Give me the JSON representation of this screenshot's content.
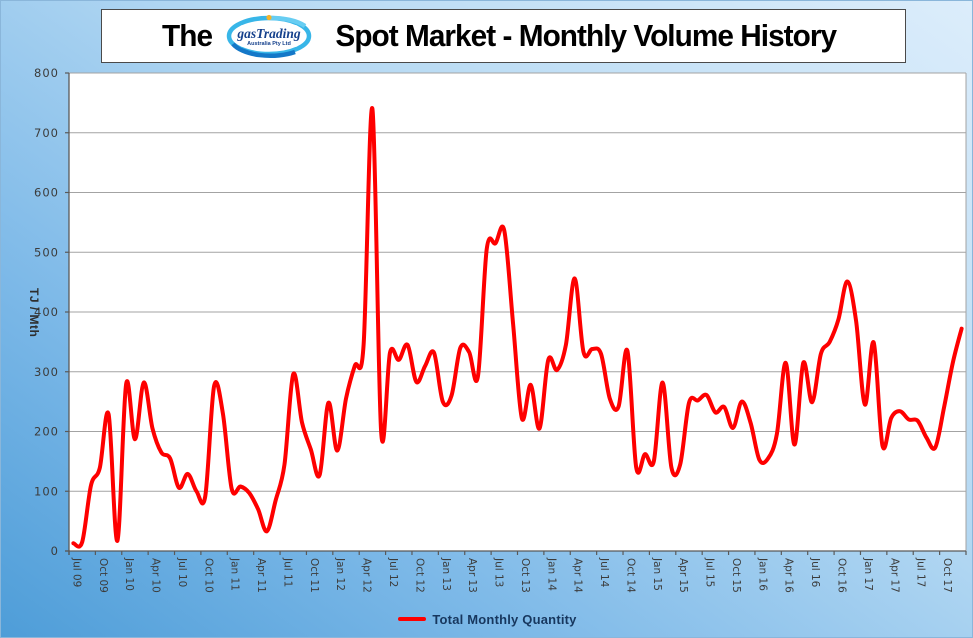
{
  "title": {
    "prefix": "The",
    "suffix": "Spot Market - Monthly Volume History",
    "logo_name": "gasTrading",
    "logo_subtext": "Australia Pty Ltd"
  },
  "y_axis": {
    "title": "TJ / Mth",
    "min": 0,
    "max": 800,
    "step": 100,
    "tick_labels": [
      "0",
      "100",
      "200",
      "300",
      "400",
      "500",
      "600",
      "700",
      "800"
    ]
  },
  "x_axis": {
    "tick_labels": [
      "Jul 09",
      "Oct 09",
      "Jan 10",
      "Apr 10",
      "Jul 10",
      "Oct 10",
      "Jan 11",
      "Apr 11",
      "Jul 11",
      "Oct 11",
      "Jan 12",
      "Apr 12",
      "Jul 12",
      "Oct 12",
      "Jan 13",
      "Apr 13",
      "Jul 13",
      "Oct 13",
      "Jan 14",
      "Apr 14",
      "Jul 14",
      "Oct 14",
      "Jan 15",
      "Apr 15",
      "Jul 15",
      "Oct 15",
      "Jan 16",
      "Apr 16",
      "Jul 16",
      "Oct 16",
      "Jan 17",
      "Apr 17",
      "Jul 17",
      "Oct 17"
    ]
  },
  "legend": {
    "label": "Total Monthly Quantity"
  },
  "colors": {
    "series": "#fe0000",
    "gridline": "#a3a3a3",
    "axis": "#595959",
    "tick_text": "#3c3c3c",
    "legend_text": "#17375e",
    "plot_bg": "#ffffff",
    "logo_blue": "#16418c",
    "logo_swirl_light": "#38b6e8",
    "logo_swirl_dark": "#1478c8"
  },
  "chart_data": {
    "type": "line",
    "smooth": true,
    "title": "The gasTrading Spot Market - Monthly Volume History",
    "ylabel": "TJ / Mth",
    "xlabel": "",
    "ylim": [
      0,
      800
    ],
    "grid": true,
    "legend_position": "bottom",
    "series_name": "Total Monthly Quantity",
    "x": [
      "Jul 09",
      "Aug 09",
      "Sep 09",
      "Oct 09",
      "Nov 09",
      "Dec 09",
      "Jan 10",
      "Feb 10",
      "Mar 10",
      "Apr 10",
      "May 10",
      "Jun 10",
      "Jul 10",
      "Aug 10",
      "Sep 10",
      "Oct 10",
      "Nov 10",
      "Dec 10",
      "Jan 11",
      "Feb 11",
      "Mar 11",
      "Apr 11",
      "May 11",
      "Jun 11",
      "Jul 11",
      "Aug 11",
      "Sep 11",
      "Oct 11",
      "Nov 11",
      "Dec 11",
      "Jan 12",
      "Feb 12",
      "Mar 12",
      "Apr 12",
      "May 12",
      "Jun 12",
      "Jul 12",
      "Aug 12",
      "Sep 12",
      "Oct 12",
      "Nov 12",
      "Dec 12",
      "Jan 13",
      "Feb 13",
      "Mar 13",
      "Apr 13",
      "May 13",
      "Jun 13",
      "Jul 13",
      "Aug 13",
      "Sep 13",
      "Oct 13",
      "Nov 13",
      "Dec 13",
      "Jan 14",
      "Feb 14",
      "Mar 14",
      "Apr 14",
      "May 14",
      "Jun 14",
      "Jul 14",
      "Aug 14",
      "Sep 14",
      "Oct 14",
      "Nov 14",
      "Dec 14",
      "Jan 15",
      "Feb 15",
      "Mar 15",
      "Apr 15",
      "May 15",
      "Jun 15",
      "Jul 15",
      "Aug 15",
      "Sep 15",
      "Oct 15",
      "Nov 15",
      "Dec 15",
      "Jan 16",
      "Feb 16",
      "Mar 16",
      "Apr 16",
      "May 16",
      "Jun 16",
      "Jul 16",
      "Aug 16",
      "Sep 16",
      "Oct 16",
      "Nov 16",
      "Dec 16",
      "Jan 17",
      "Feb 17",
      "Mar 17",
      "Apr 17",
      "May 17",
      "Jun 17",
      "Jul 17",
      "Aug 17",
      "Sep 17",
      "Oct 17",
      "Nov 17",
      "Dec 17"
    ],
    "values": [
      13,
      15,
      110,
      139,
      229,
      17,
      280,
      187,
      282,
      205,
      165,
      155,
      106,
      129,
      100,
      92,
      276,
      230,
      104,
      108,
      97,
      70,
      33,
      85,
      145,
      296,
      215,
      170,
      127,
      248,
      168,
      255,
      310,
      345,
      740,
      198,
      332,
      320,
      345,
      283,
      310,
      332,
      250,
      260,
      340,
      333,
      292,
      505,
      515,
      536,
      380,
      222,
      278,
      205,
      320,
      303,
      345,
      456,
      333,
      338,
      330,
      255,
      242,
      335,
      140,
      162,
      150,
      282,
      140,
      145,
      248,
      252,
      261,
      232,
      241,
      206,
      250,
      215,
      153,
      155,
      196,
      315,
      178,
      315,
      249,
      330,
      350,
      388,
      451,
      385,
      245,
      349,
      176,
      223,
      234,
      220,
      218,
      190,
      173,
      240,
      315,
      372
    ]
  }
}
